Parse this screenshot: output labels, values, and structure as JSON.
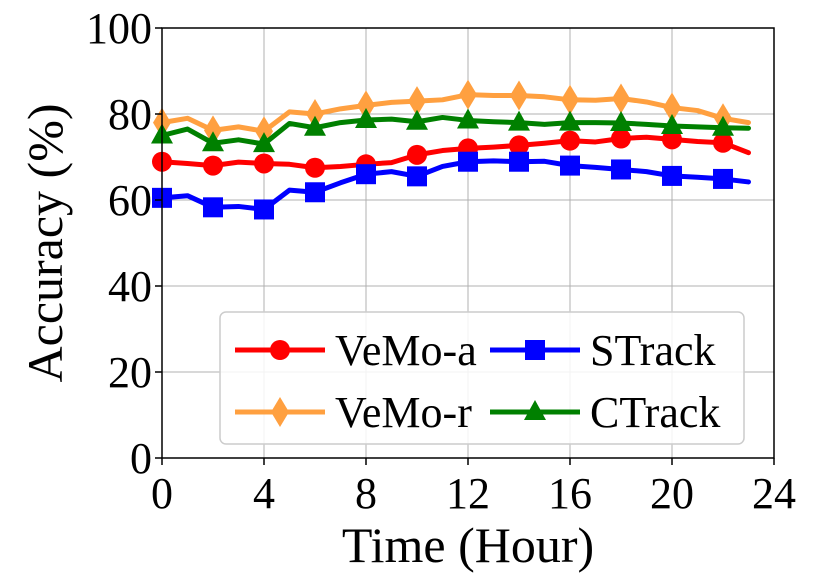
{
  "chart_data": {
    "type": "line",
    "title": "",
    "xlabel": "Time (Hour)",
    "ylabel": "Accuracy (%)",
    "xlim": [
      0,
      24
    ],
    "ylim": [
      0,
      100
    ],
    "xticks": [
      0,
      4,
      8,
      12,
      16,
      20,
      24
    ],
    "yticks": [
      0,
      20,
      40,
      60,
      80,
      100
    ],
    "grid": true,
    "legend_position": "lower-right",
    "x": [
      0,
      1,
      2,
      3,
      4,
      5,
      6,
      7,
      8,
      9,
      10,
      11,
      12,
      13,
      14,
      15,
      16,
      17,
      18,
      19,
      20,
      21,
      22,
      23
    ],
    "marker_every": 2,
    "series": [
      {
        "name": "VeMo-a",
        "color": "#ff0000",
        "marker": "circle",
        "values": [
          68.9,
          68.5,
          68.0,
          68.8,
          68.5,
          68.3,
          67.5,
          67.8,
          68.3,
          68.7,
          70.5,
          71.5,
          72.0,
          72.3,
          72.7,
          73.2,
          73.8,
          73.5,
          74.3,
          74.6,
          74.1,
          73.6,
          73.3,
          71.0
        ]
      },
      {
        "name": "STrack",
        "color": "#0000ff",
        "marker": "square",
        "values": [
          60.5,
          61.0,
          58.3,
          58.5,
          57.8,
          62.3,
          61.8,
          64.0,
          66.0,
          66.6,
          65.5,
          67.8,
          68.9,
          69.1,
          68.9,
          69.0,
          68.0,
          67.6,
          67.1,
          66.6,
          65.6,
          65.3,
          64.9,
          64.2
        ]
      },
      {
        "name": "VeMo-r",
        "color": "#ffa040",
        "marker": "diamond",
        "values": [
          78.0,
          79.0,
          76.2,
          77.0,
          76.0,
          80.5,
          80.0,
          81.2,
          82.0,
          82.7,
          83.0,
          83.3,
          84.5,
          84.3,
          84.3,
          84.0,
          83.3,
          83.2,
          83.6,
          82.8,
          81.5,
          80.8,
          79.0,
          78.0
        ]
      },
      {
        "name": "CTrack",
        "color": "#008000",
        "marker": "triangle",
        "values": [
          75.0,
          76.5,
          73.2,
          74.0,
          73.0,
          77.8,
          76.8,
          78.0,
          78.6,
          78.8,
          78.2,
          79.2,
          78.5,
          78.2,
          78.0,
          77.6,
          78.0,
          78.0,
          77.9,
          77.6,
          77.2,
          77.0,
          76.8,
          76.7
        ]
      }
    ]
  }
}
